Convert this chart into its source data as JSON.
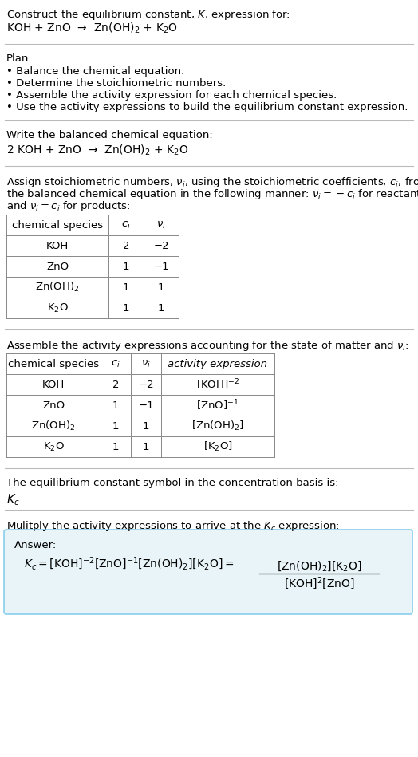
{
  "title_line1": "Construct the equilibrium constant, $K$, expression for:",
  "title_line2": "KOH + ZnO  →  Zn(OH)$_2$ + K$_2$O",
  "plan_header": "Plan:",
  "plan_items": [
    "• Balance the chemical equation.",
    "• Determine the stoichiometric numbers.",
    "• Assemble the activity expression for each chemical species.",
    "• Use the activity expressions to build the equilibrium constant expression."
  ],
  "balanced_header": "Write the balanced chemical equation:",
  "balanced_eq": "2 KOH + ZnO  →  Zn(OH)$_2$ + K$_2$O",
  "stoich_intro_lines": [
    "Assign stoichiometric numbers, $\\nu_i$, using the stoichiometric coefficients, $c_i$, from",
    "the balanced chemical equation in the following manner: $\\nu_i = -c_i$ for reactants",
    "and $\\nu_i = c_i$ for products:"
  ],
  "table1_headers": [
    "chemical species",
    "$c_i$",
    "$\\nu_i$"
  ],
  "table1_rows": [
    [
      "KOH",
      "2",
      "−2"
    ],
    [
      "ZnO",
      "1",
      "−1"
    ],
    [
      "Zn(OH)$_2$",
      "1",
      "1"
    ],
    [
      "K$_2$O",
      "1",
      "1"
    ]
  ],
  "activity_intro": "Assemble the activity expressions accounting for the state of matter and $\\nu_i$:",
  "table2_headers": [
    "chemical species",
    "$c_i$",
    "$\\nu_i$",
    "activity expression"
  ],
  "table2_rows": [
    [
      "KOH",
      "2",
      "−2",
      "[KOH]$^{-2}$"
    ],
    [
      "ZnO",
      "1",
      "−1",
      "[ZnO]$^{-1}$"
    ],
    [
      "Zn(OH)$_2$",
      "1",
      "1",
      "[Zn(OH)$_2$]"
    ],
    [
      "K$_2$O",
      "1",
      "1",
      "[K$_2$O]"
    ]
  ],
  "kc_intro": "The equilibrium constant symbol in the concentration basis is:",
  "kc_symbol": "$K_c$",
  "multiply_intro": "Mulitply the activity expressions to arrive at the $K_c$ expression:",
  "answer_label": "Answer:",
  "bg_color": "#ffffff",
  "answer_bg_color": "#e8f4f8",
  "answer_border_color": "#87ceeb",
  "text_color": "#000000",
  "font_size": 9.5
}
